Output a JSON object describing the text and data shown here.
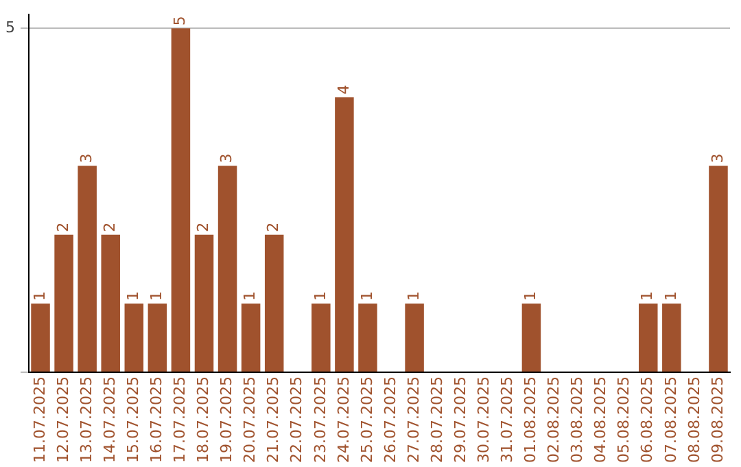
{
  "chart_data": {
    "type": "bar",
    "categories": [
      "11.07.2025",
      "12.07.2025",
      "13.07.2025",
      "14.07.2025",
      "15.07.2025",
      "16.07.2025",
      "17.07.2025",
      "18.07.2025",
      "19.07.2025",
      "20.07.2025",
      "21.07.2025",
      "22.07.2025",
      "23.07.2025",
      "24.07.2025",
      "25.07.2025",
      "26.07.2025",
      "27.07.2025",
      "28.07.2025",
      "29.07.2025",
      "30.07.2025",
      "31.07.2025",
      "01.08.2025",
      "02.08.2025",
      "03.08.2025",
      "04.08.2025",
      "05.08.2025",
      "06.08.2025",
      "07.08.2025",
      "08.08.2025",
      "09.08.2025"
    ],
    "values": [
      1,
      2,
      3,
      2,
      1,
      1,
      5,
      2,
      3,
      1,
      2,
      0,
      1,
      4,
      1,
      0,
      1,
      0,
      0,
      0,
      0,
      1,
      0,
      0,
      0,
      0,
      1,
      1,
      0,
      3
    ],
    "value_labels": [
      "1",
      "2",
      "3",
      "2",
      "1",
      "1",
      "5",
      "2",
      "3",
      "1",
      "2",
      null,
      "1",
      "4",
      "1",
      null,
      "1",
      null,
      null,
      null,
      null,
      "1",
      null,
      null,
      null,
      null,
      "1",
      "1",
      null,
      "3"
    ],
    "color": "#a0522d",
    "ylim": [
      0,
      5.2
    ],
    "yticks": [
      {
        "value": 0,
        "label": null
      },
      5
    ],
    "grid": "y"
  }
}
